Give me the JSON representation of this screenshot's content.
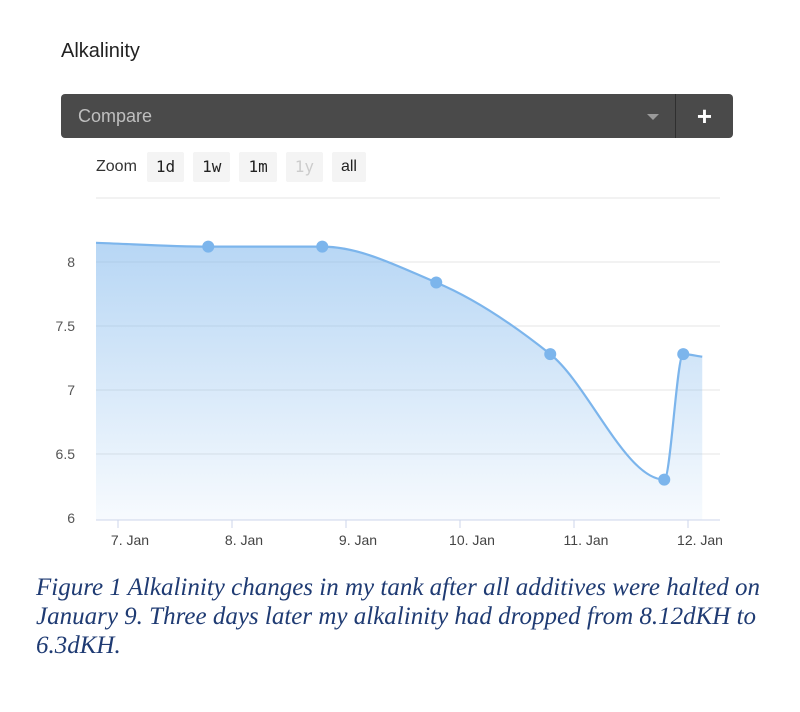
{
  "title": "Alkalinity",
  "compare": {
    "placeholder": "Compare",
    "add_label": "+"
  },
  "zoom": {
    "label": "Zoom",
    "buttons": [
      {
        "label": "1d",
        "enabled": true
      },
      {
        "label": "1w",
        "enabled": true
      },
      {
        "label": "1m",
        "enabled": true
      },
      {
        "label": "1y",
        "enabled": false
      },
      {
        "label": "all",
        "enabled": true
      }
    ]
  },
  "colors": {
    "line": "#7cb5ec",
    "marker": "#7cb5ec",
    "grid": "#e6e6e6"
  },
  "chart_data": {
    "type": "area",
    "title": "",
    "xlabel": "",
    "ylabel": "",
    "x_ticks": [
      "7. Jan",
      "8. Jan",
      "9. Jan",
      "10. Jan",
      "11. Jan",
      "12. Jan"
    ],
    "y_ticks": [
      "6",
      "6.5",
      "7",
      "7.5",
      "8"
    ],
    "ylim": [
      6,
      8.5
    ],
    "grid": true,
    "series": [
      {
        "name": "",
        "points": [
          {
            "x": "6. Jan 19:00",
            "y": 8.15
          },
          {
            "x": "7. Jan 19:00",
            "y": 8.12
          },
          {
            "x": "8. Jan 19:00",
            "y": 8.12
          },
          {
            "x": "9. Jan 19:00",
            "y": 7.84
          },
          {
            "x": "10. Jan 19:00",
            "y": 7.28
          },
          {
            "x": "11. Jan 19:00",
            "y": 6.3
          },
          {
            "x": "11. Jan 23:00",
            "y": 7.28
          },
          {
            "x": "12. Jan 03:00",
            "y": 7.26
          }
        ],
        "markers": [
          1,
          2,
          3,
          4,
          5,
          6
        ]
      }
    ]
  },
  "caption": "Figure 1 Alkalinity changes in my tank after all additives were halted on January 9.   Three days later my alkalinity had dropped from 8.12dKH to 6.3dKH."
}
